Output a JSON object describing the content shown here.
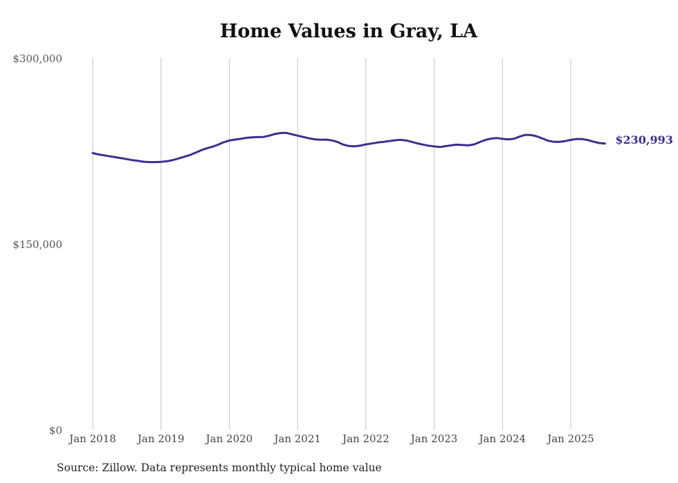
{
  "chart_data": {
    "type": "line",
    "title": "Home Values in Gray, LA",
    "source_note": "Source: Zillow. Data represents monthly typical home value",
    "xlabel": "",
    "ylabel": "",
    "ylim": [
      0,
      300000
    ],
    "xlim": [
      "2018-01",
      "2025-07"
    ],
    "y_ticks": [
      {
        "value": 0,
        "label": "$0"
      },
      {
        "value": 150000,
        "label": "$150,000"
      },
      {
        "value": 300000,
        "label": "$300,000"
      }
    ],
    "x_ticks": [
      {
        "value": "2018-01",
        "label": "Jan 2018"
      },
      {
        "value": "2019-01",
        "label": "Jan 2019"
      },
      {
        "value": "2020-01",
        "label": "Jan 2020"
      },
      {
        "value": "2021-01",
        "label": "Jan 2021"
      },
      {
        "value": "2022-01",
        "label": "Jan 2022"
      },
      {
        "value": "2023-01",
        "label": "Jan 2023"
      },
      {
        "value": "2024-01",
        "label": "Jan 2024"
      },
      {
        "value": "2025-01",
        "label": "Jan 2025"
      }
    ],
    "grid": "vertical",
    "line_color": "#3b2e8f",
    "end_label": "$230,993",
    "series": [
      {
        "x": [
          "2018-01",
          "2018-02",
          "2018-03",
          "2018-04",
          "2018-05",
          "2018-06",
          "2018-07",
          "2018-08",
          "2018-09",
          "2018-10",
          "2018-11",
          "2018-12",
          "2019-01",
          "2019-02",
          "2019-03",
          "2019-04",
          "2019-05",
          "2019-06",
          "2019-07",
          "2019-08",
          "2019-09",
          "2019-10",
          "2019-11",
          "2019-12",
          "2020-01",
          "2020-02",
          "2020-03",
          "2020-04",
          "2020-05",
          "2020-06",
          "2020-07",
          "2020-08",
          "2020-09",
          "2020-10",
          "2020-11",
          "2020-12",
          "2021-01",
          "2021-02",
          "2021-03",
          "2021-04",
          "2021-05",
          "2021-06",
          "2021-07",
          "2021-08",
          "2021-09",
          "2021-10",
          "2021-11",
          "2021-12",
          "2022-01",
          "2022-02",
          "2022-03",
          "2022-04",
          "2022-05",
          "2022-06",
          "2022-07",
          "2022-08",
          "2022-09",
          "2022-10",
          "2022-11",
          "2022-12",
          "2023-01",
          "2023-02",
          "2023-03",
          "2023-04",
          "2023-05",
          "2023-06",
          "2023-07",
          "2023-08",
          "2023-09",
          "2023-10",
          "2023-11",
          "2023-12",
          "2024-01",
          "2024-02",
          "2024-03",
          "2024-04",
          "2024-05",
          "2024-06",
          "2024-07",
          "2024-08",
          "2024-09",
          "2024-10",
          "2024-11",
          "2024-12",
          "2025-01",
          "2025-02",
          "2025-03",
          "2025-04",
          "2025-05",
          "2025-06",
          "2025-07"
        ],
        "values": [
          223300,
          222200,
          221500,
          220700,
          220000,
          219200,
          218400,
          217600,
          217000,
          216300,
          216000,
          216000,
          216200,
          216700,
          217600,
          218800,
          220200,
          221600,
          223500,
          225500,
          227100,
          228400,
          230000,
          232000,
          233400,
          234200,
          234800,
          235600,
          236000,
          236200,
          236300,
          237300,
          238700,
          239500,
          239600,
          238500,
          237400,
          236300,
          235200,
          234400,
          234100,
          234200,
          233600,
          232300,
          230200,
          229000,
          228800,
          229300,
          230300,
          231000,
          231800,
          232300,
          232900,
          233600,
          234000,
          233600,
          232400,
          231200,
          230200,
          229300,
          228700,
          228200,
          228900,
          229600,
          230100,
          229800,
          229500,
          230300,
          232200,
          233900,
          235000,
          235400,
          234800,
          234300,
          234800,
          236600,
          238000,
          237900,
          236900,
          235100,
          233300,
          232400,
          232400,
          233000,
          233900,
          234700,
          234600,
          233800,
          232500,
          231400,
          230993
        ]
      }
    ]
  }
}
